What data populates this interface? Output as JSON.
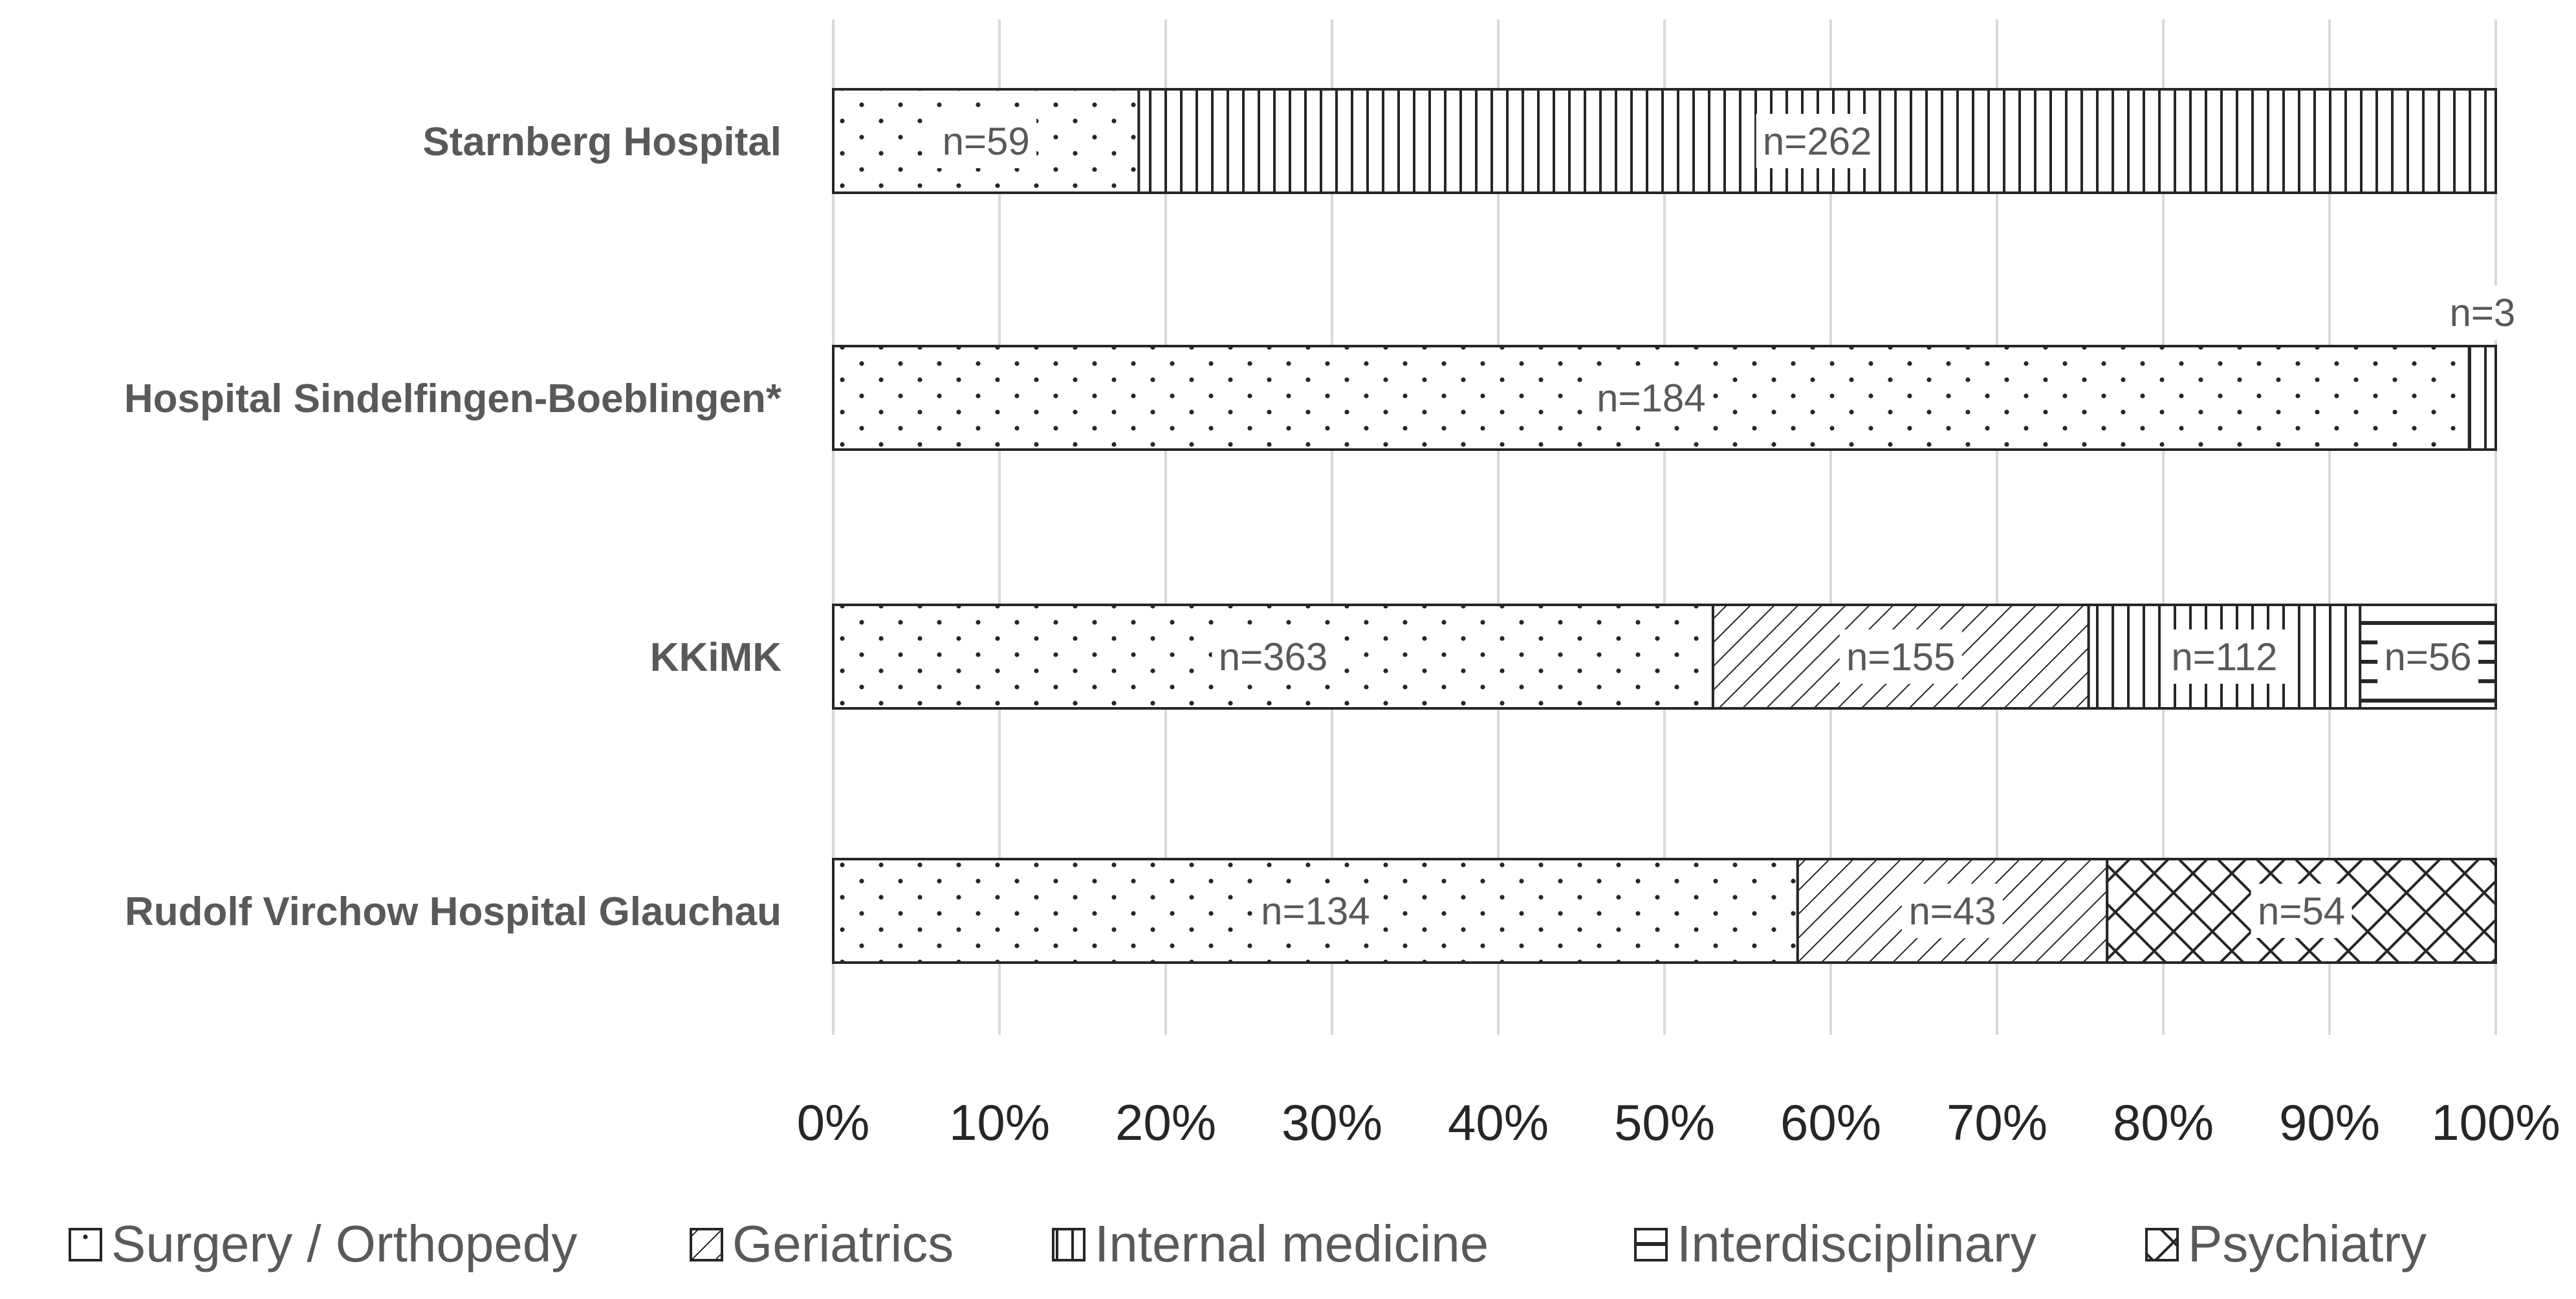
{
  "chart_data": {
    "type": "bar",
    "orientation": "horizontal",
    "stacked": "percent",
    "categories": [
      "Starnberg Hospital",
      "Hospital Sindelfingen-Boeblingen*",
      "KKiMK",
      "Rudolf Virchow Hospital Glauchau"
    ],
    "series": [
      {
        "name": "Surgery / Orthopedy",
        "values": [
          59,
          184,
          363,
          134
        ],
        "labels": [
          "n=59",
          "n=184",
          "n=363",
          "n=134"
        ],
        "pattern": "dots"
      },
      {
        "name": "Geriatrics",
        "values": [
          0,
          0,
          155,
          43
        ],
        "labels": [
          "",
          "",
          "n=155",
          "n=43"
        ],
        "pattern": "diagonal"
      },
      {
        "name": "Internal medicine",
        "values": [
          262,
          3,
          112,
          0
        ],
        "labels": [
          "n=262",
          "n=3",
          "n=112",
          ""
        ],
        "pattern": "vertical"
      },
      {
        "name": "Interdisciplinary",
        "values": [
          0,
          0,
          56,
          0
        ],
        "labels": [
          "",
          "",
          "n=56",
          ""
        ],
        "pattern": "horizontal"
      },
      {
        "name": "Psychiatry",
        "values": [
          0,
          0,
          0,
          54
        ],
        "labels": [
          "",
          "",
          "",
          "n=54"
        ],
        "pattern": "crosshatch"
      }
    ],
    "x_ticks": [
      "0%",
      "10%",
      "20%",
      "30%",
      "40%",
      "50%",
      "60%",
      "70%",
      "80%",
      "90%",
      "100%"
    ],
    "xlim": [
      0,
      100
    ],
    "grid": true,
    "legend_position": "bottom"
  }
}
